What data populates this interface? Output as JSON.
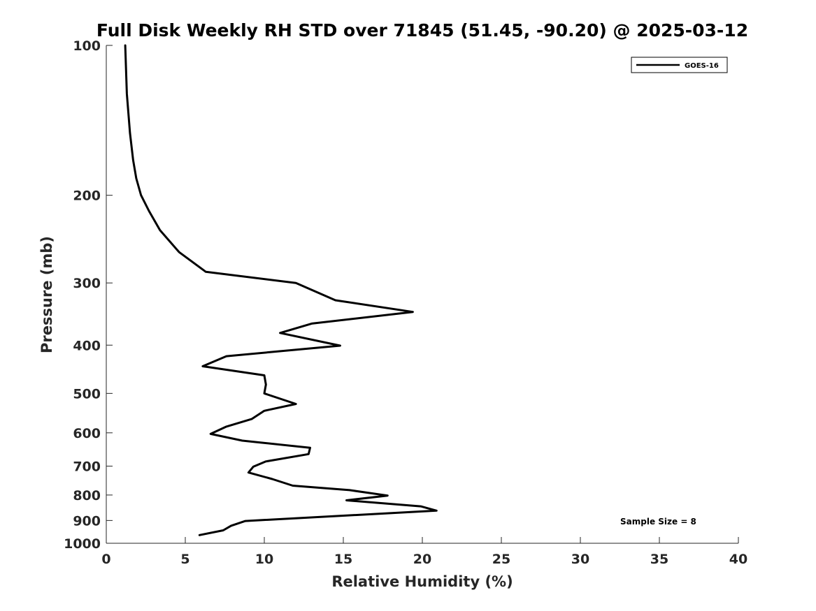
{
  "chart_data": {
    "type": "line",
    "title": "Full Disk Weekly RH STD over 71845 (51.45, -90.20) @ 2025-03-12",
    "xlabel": "Relative Humidity (%)",
    "ylabel": "Pressure (mb)",
    "xlim": [
      0,
      40
    ],
    "ylim": [
      100,
      1000
    ],
    "y_scale": "log",
    "y_reversed": true,
    "x_ticks": [
      0,
      5,
      10,
      15,
      20,
      25,
      30,
      35,
      40
    ],
    "y_ticks": [
      100,
      200,
      300,
      400,
      500,
      600,
      700,
      800,
      900,
      1000
    ],
    "grid": false,
    "legend_position": "top-right",
    "series": [
      {
        "name": "GOES-16",
        "color": "#000000",
        "points": [
          [
            1.2,
            100
          ],
          [
            1.3,
            125
          ],
          [
            1.5,
            150
          ],
          [
            1.7,
            170
          ],
          [
            1.9,
            185
          ],
          [
            2.2,
            200
          ],
          [
            2.7,
            215
          ],
          [
            3.4,
            235
          ],
          [
            4.6,
            260
          ],
          [
            6.3,
            285
          ],
          [
            12.0,
            300
          ],
          [
            14.5,
            325
          ],
          [
            19.4,
            343
          ],
          [
            13.0,
            362
          ],
          [
            11.0,
            378
          ],
          [
            14.8,
            401
          ],
          [
            7.6,
            421
          ],
          [
            6.1,
            441
          ],
          [
            10.0,
            460
          ],
          [
            10.1,
            480
          ],
          [
            10.0,
            500
          ],
          [
            12.0,
            525
          ],
          [
            10.0,
            542
          ],
          [
            9.2,
            563
          ],
          [
            7.6,
            583
          ],
          [
            6.6,
            603
          ],
          [
            8.6,
            622
          ],
          [
            12.9,
            643
          ],
          [
            12.8,
            662
          ],
          [
            10.1,
            685
          ],
          [
            9.3,
            702
          ],
          [
            9.0,
            721
          ],
          [
            10.5,
            743
          ],
          [
            11.8,
            766
          ],
          [
            15.4,
            782
          ],
          [
            17.8,
            802
          ],
          [
            15.2,
            820
          ],
          [
            19.9,
            843
          ],
          [
            20.9,
            860
          ],
          [
            8.8,
            902
          ],
          [
            7.9,
            922
          ],
          [
            7.4,
            942
          ],
          [
            5.9,
            963
          ]
        ]
      }
    ],
    "annotation": "Sample Size = 8"
  }
}
